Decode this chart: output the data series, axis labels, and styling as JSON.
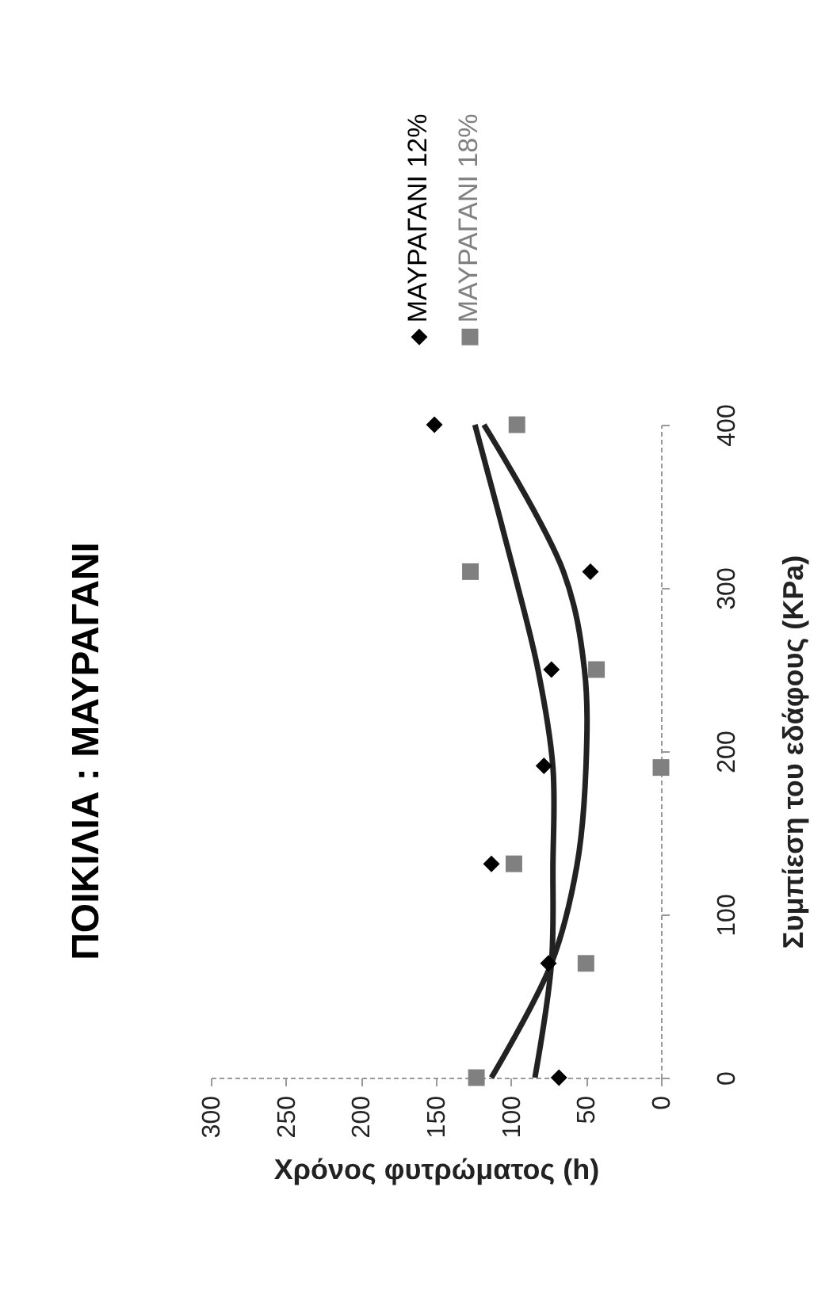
{
  "chart_data": {
    "type": "scatter",
    "title": "ΠΟΙΚΙΛΙΑ : ΜΑΥΡΑΓΑΝΙ",
    "xlabel": "Χρόνος φυτρώματος (h)",
    "ylabel": "Συμπίεση του εδάφους (KPa)",
    "xlim": [
      300,
      0
    ],
    "xticks": [
      300,
      250,
      200,
      150,
      100,
      50,
      0
    ],
    "ylim": [
      0,
      400
    ],
    "yticks": [
      0,
      100,
      200,
      300,
      400
    ],
    "grid": false,
    "legend": "top",
    "series": [
      {
        "name": "ΜΑΥΡΑΓΑΝΙ 12%",
        "color": "#000000",
        "marker": "diamond",
        "x": [
          68,
          75,
          113,
          78,
          73,
          47,
          151
        ],
        "values": [
          0,
          70,
          131,
          191,
          250,
          310,
          400
        ]
      },
      {
        "name": "ΜΑΥΡΑΓΑΝΙ 18%",
        "color": "#808080",
        "marker": "square",
        "x": [
          123,
          50,
          98,
          0,
          43,
          127,
          96
        ],
        "values": [
          0,
          70,
          131,
          190,
          250,
          310,
          400
        ]
      },
      {
        "type": "line",
        "color": "#222222",
        "marker": "none",
        "x": [
          84,
          73,
          72,
          72,
          82,
          98,
          124
        ],
        "values": [
          0,
          70,
          130,
          190,
          250,
          310,
          400
        ]
      },
      {
        "type": "line",
        "color": "#222222",
        "marker": "none",
        "x": [
          113,
          73,
          56,
          50,
          51,
          65,
          118
        ],
        "values": [
          0,
          70,
          130,
          190,
          250,
          310,
          400
        ]
      }
    ]
  }
}
